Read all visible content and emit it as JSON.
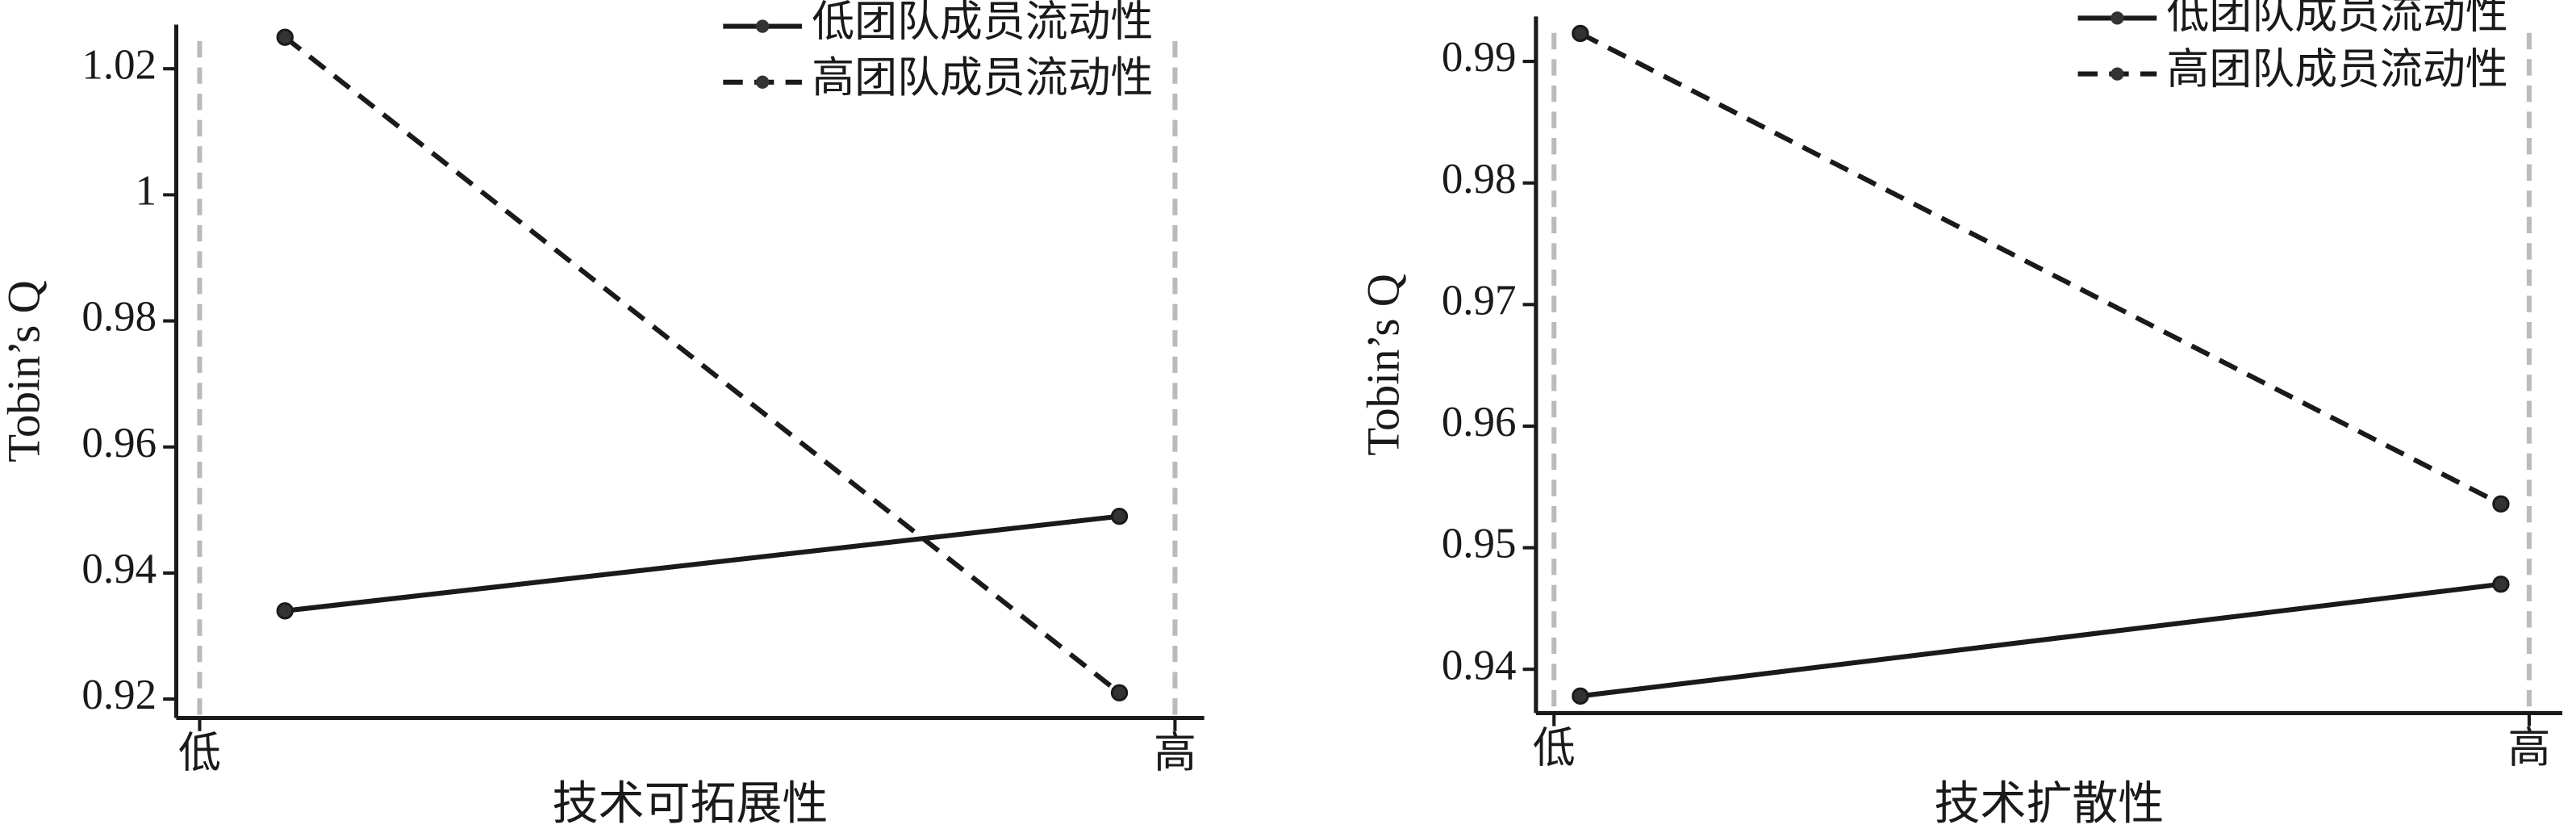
{
  "chart_data": [
    {
      "type": "line",
      "x_label": "技术可拓展性",
      "y_label": "Tobin’s Q",
      "x": [
        0.0875,
        0.943
      ],
      "xlim": [
        -0.024,
        1.03
      ],
      "xticks": [
        {
          "value": 0,
          "label": "低"
        },
        {
          "value": 1,
          "label": "高"
        }
      ],
      "ylim": [
        0.917,
        1.027
      ],
      "yticks": [
        0.92,
        0.94,
        0.96,
        0.98,
        1,
        1.02
      ],
      "grid": true,
      "legend": "upper right",
      "series": [
        {
          "name": "低团队成员流动性",
          "color": "#1a1a1a",
          "dash": "solid",
          "values": [
            0.934,
            0.949
          ]
        },
        {
          "name": "高团队成员流动性",
          "color": "#1a1a1a",
          "dash": "dashed",
          "values": [
            1.025,
            0.921
          ]
        }
      ]
    },
    {
      "type": "line",
      "x_label": "技术扩散性",
      "y_label": "Tobin’s Q",
      "x": [
        0.027,
        0.971
      ],
      "xlim": [
        -0.0185,
        1.034
      ],
      "xticks": [
        {
          "value": 0,
          "label": "低"
        },
        {
          "value": 1,
          "label": "高"
        }
      ],
      "ylim": [
        0.9364,
        0.9937
      ],
      "yticks": [
        0.94,
        0.95,
        0.96,
        0.97,
        0.98,
        0.99
      ],
      "grid": true,
      "legend": "upper right",
      "series": [
        {
          "name": "低团队成员流动性",
          "color": "#1a1a1a",
          "dash": "solid",
          "values": [
            0.9378,
            0.947
          ]
        },
        {
          "name": "高团队成员流动性",
          "color": "#1a1a1a",
          "dash": "dashed",
          "values": [
            0.9923,
            0.9536
          ]
        }
      ]
    }
  ]
}
